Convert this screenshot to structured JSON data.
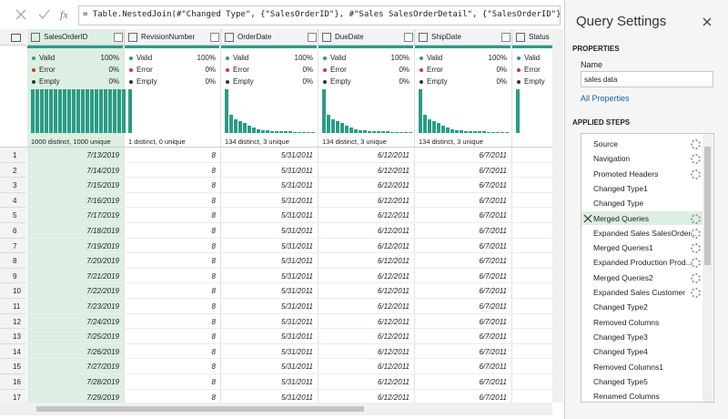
{
  "formula_bar": {
    "fx": "fx",
    "formula": "= Table.NestedJoin(#\"Changed Type\", {\"SalesOrderID\"}, #\"Sales SalesOrderDetail\", {\"SalesOrderID\"}, \"Sales"
  },
  "quality_labels": [
    "Valid",
    "Error",
    "Empty"
  ],
  "columns": [
    {
      "name": "SalesOrderID",
      "selected": true,
      "quality": [
        "100%",
        "0%",
        "0%"
      ],
      "distinct": "1000 distinct, 1000 unique",
      "distribution": [
        100,
        100,
        100,
        100,
        100,
        100,
        100,
        100,
        100,
        100,
        100,
        100,
        100,
        100,
        100,
        100,
        100,
        100,
        100,
        100,
        100
      ]
    },
    {
      "name": "RevisionNumber",
      "quality": [
        "100%",
        "0%",
        "0%"
      ],
      "distinct": "1 distinct, 0 unique",
      "distribution": [
        100
      ]
    },
    {
      "name": "OrderDate",
      "quality": [
        "100%",
        "0%",
        "0%"
      ],
      "distinct": "134 distinct, 3 unique",
      "distribution": [
        100,
        42,
        32,
        27,
        22,
        16,
        12,
        9,
        7,
        6,
        5,
        5,
        4,
        4,
        4,
        3,
        3,
        3,
        3,
        3
      ]
    },
    {
      "name": "DueDate",
      "quality": [
        "100%",
        "0%",
        "0%"
      ],
      "distinct": "134 distinct, 3 unique",
      "distribution": [
        100,
        42,
        32,
        27,
        22,
        16,
        12,
        9,
        7,
        6,
        5,
        5,
        4,
        4,
        4,
        3,
        3,
        3,
        3,
        3
      ]
    },
    {
      "name": "ShipDate",
      "quality": [
        "100%",
        "0%",
        "0%"
      ],
      "distinct": "134 distinct, 3 unique",
      "distribution": [
        100,
        42,
        32,
        27,
        22,
        16,
        12,
        9,
        7,
        6,
        5,
        5,
        4,
        4,
        4,
        3,
        3,
        3,
        3,
        3
      ]
    },
    {
      "name": "Status",
      "distribution": [
        100
      ]
    }
  ],
  "rows": [
    {
      "row": 1,
      "cells": [
        "7/13/2019",
        8,
        "5/31/2011",
        "6/12/2011",
        "6/7/2011"
      ]
    },
    {
      "row": 2,
      "cells": [
        "7/14/2019",
        8,
        "5/31/2011",
        "6/12/2011",
        "6/7/2011"
      ]
    },
    {
      "row": 3,
      "cells": [
        "7/15/2019",
        8,
        "5/31/2011",
        "6/12/2011",
        "6/7/2011"
      ]
    },
    {
      "row": 4,
      "cells": [
        "7/16/2019",
        8,
        "5/31/2011",
        "6/12/2011",
        "6/7/2011"
      ]
    },
    {
      "row": 5,
      "cells": [
        "7/17/2019",
        8,
        "5/31/2011",
        "6/12/2011",
        "6/7/2011"
      ]
    },
    {
      "row": 6,
      "cells": [
        "7/18/2019",
        8,
        "5/31/2011",
        "6/12/2011",
        "6/7/2011"
      ]
    },
    {
      "row": 7,
      "cells": [
        "7/19/2019",
        8,
        "5/31/2011",
        "6/12/2011",
        "6/7/2011"
      ]
    },
    {
      "row": 8,
      "cells": [
        "7/20/2019",
        8,
        "5/31/2011",
        "6/12/2011",
        "6/7/2011"
      ]
    },
    {
      "row": 9,
      "cells": [
        "7/21/2019",
        8,
        "5/31/2011",
        "6/12/2011",
        "6/7/2011"
      ]
    },
    {
      "row": 10,
      "cells": [
        "7/22/2019",
        8,
        "5/31/2011",
        "6/12/2011",
        "6/7/2011"
      ]
    },
    {
      "row": 11,
      "cells": [
        "7/23/2019",
        8,
        "5/31/2011",
        "6/12/2011",
        "6/7/2011"
      ]
    },
    {
      "row": 12,
      "cells": [
        "7/24/2019",
        8,
        "5/31/2011",
        "6/12/2011",
        "6/7/2011"
      ]
    },
    {
      "row": 13,
      "cells": [
        "7/25/2019",
        8,
        "5/31/2011",
        "6/12/2011",
        "6/7/2011"
      ]
    },
    {
      "row": 14,
      "cells": [
        "7/26/2019",
        8,
        "5/31/2011",
        "6/12/2011",
        "6/7/2011"
      ]
    },
    {
      "row": 15,
      "cells": [
        "7/27/2019",
        8,
        "5/31/2011",
        "6/12/2011",
        "6/7/2011"
      ]
    },
    {
      "row": 16,
      "cells": [
        "7/28/2019",
        8,
        "5/31/2011",
        "6/12/2011",
        "6/7/2011"
      ]
    },
    {
      "row": 17,
      "cells": [
        "7/29/2019",
        8,
        "5/31/2011",
        "6/12/2011",
        "6/7/2011"
      ]
    }
  ],
  "query_settings": {
    "title": "Query Settings",
    "properties_heading": "PROPERTIES",
    "name_label": "Name",
    "name_value": "sales data",
    "all_properties": "All Properties",
    "steps_heading": "APPLIED STEPS",
    "steps": [
      {
        "label": "Source",
        "has_settings": true
      },
      {
        "label": "Navigation",
        "has_settings": true
      },
      {
        "label": "Promoted Headers",
        "has_settings": true
      },
      {
        "label": "Changed Type1"
      },
      {
        "label": "Changed Type"
      },
      {
        "label": "Merged Queries",
        "has_settings": true,
        "selected": true
      },
      {
        "label": "Expanded Sales SalesOrder...",
        "has_settings": true
      },
      {
        "label": "Merged Queries1",
        "has_settings": true
      },
      {
        "label": "Expanded Production Prod...",
        "has_settings": true
      },
      {
        "label": "Merged Queries2",
        "has_settings": true
      },
      {
        "label": "Expanded Sales Customer",
        "has_settings": true
      },
      {
        "label": "Changed Type2"
      },
      {
        "label": "Removed Columns"
      },
      {
        "label": "Changed Type3"
      },
      {
        "label": "Changed Type4"
      },
      {
        "label": "Removed Columns1"
      },
      {
        "label": "Changed Type5"
      },
      {
        "label": "Renamed Columns"
      }
    ]
  }
}
